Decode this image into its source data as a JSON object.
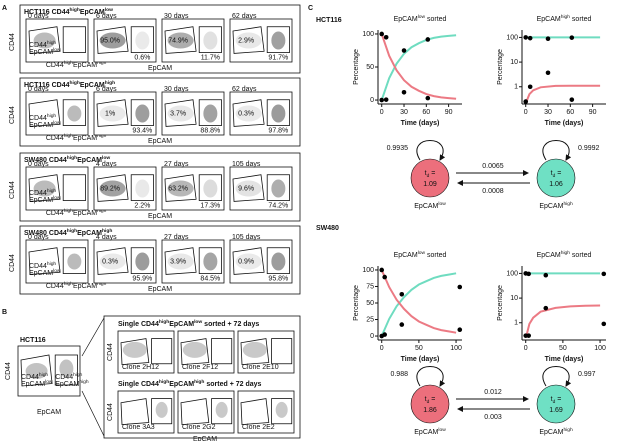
{
  "panel_a": {
    "label": "A",
    "y_axis": "CD44",
    "x_axis": "EpCAM",
    "groups": [
      {
        "title": [
          "HCT116 CD44",
          "high",
          "EpCAM",
          "low"
        ],
        "plots": [
          {
            "day": "0 days",
            "gate_labels": [
              [
                [
                  "CD44",
                  "high"
                ],
                [
                  "EpCAM",
                  "low"
                ]
              ],
              [
                [
                  "CD44",
                  "high",
                  "EpCAM",
                  "high"
                ]
              ]
            ]
          },
          {
            "day": "6 days",
            "percents": [
              "95.0%",
              "0.6%"
            ]
          },
          {
            "day": "30 days",
            "percents": [
              "74.9%",
              "11.7%"
            ]
          },
          {
            "day": "62 days",
            "percents": [
              "2.9%",
              "91.7%"
            ]
          }
        ]
      },
      {
        "title": [
          "HCT116 CD44",
          "high",
          "EpCAM",
          "high"
        ],
        "plots": [
          {
            "day": "0 days",
            "gate_labels": [
              [
                [
                  "CD44",
                  "high"
                ],
                [
                  "EpCAM",
                  "low"
                ]
              ],
              [
                [
                  "CD44",
                  "high",
                  "EpCAM",
                  "high"
                ]
              ]
            ]
          },
          {
            "day": "6 days",
            "percents": [
              "1%",
              "93.4%"
            ]
          },
          {
            "day": "30 days",
            "percents": [
              "3.7%",
              "88.8%"
            ]
          },
          {
            "day": "62 days",
            "percents": [
              "0.3%",
              "97.8%"
            ]
          }
        ]
      },
      {
        "title": [
          "SW480 CD44",
          "high",
          "EpCAM",
          "low"
        ],
        "plots": [
          {
            "day": "0 days",
            "gate_labels": [
              [
                [
                  "CD44",
                  "high"
                ],
                [
                  "EpCAM",
                  "low"
                ]
              ],
              [
                [
                  "CD44",
                  "high",
                  "EpCAM",
                  "high"
                ]
              ]
            ]
          },
          {
            "day": "4 days",
            "percents": [
              "89.2%",
              "2.2%"
            ]
          },
          {
            "day": "27 days",
            "percents": [
              "63.2%",
              "17.3%"
            ]
          },
          {
            "day": "105 days",
            "percents": [
              "9.6%",
              "74.2%"
            ]
          }
        ]
      },
      {
        "title": [
          "SW480 CD44",
          "high",
          "EpCAM",
          "high"
        ],
        "plots": [
          {
            "day": "0 days",
            "gate_labels": [
              [
                [
                  "CD44",
                  "high"
                ],
                [
                  "EpCAM",
                  "low"
                ]
              ],
              [
                [
                  "CD44",
                  "high",
                  "EpCAM",
                  "high"
                ]
              ]
            ]
          },
          {
            "day": "4 days",
            "percents": [
              "0.3%",
              "95.9%"
            ]
          },
          {
            "day": "27 days",
            "percents": [
              "3.9%",
              "84.5%"
            ]
          },
          {
            "day": "105 days",
            "percents": [
              "0.9%",
              "95.8%"
            ]
          }
        ]
      }
    ]
  },
  "panel_b": {
    "label": "B",
    "title": "HCT116",
    "y_axis": "CD44",
    "x_axis": "EpCAM",
    "gate_labels": [
      [
        [
          "CD44",
          "high"
        ],
        [
          "EpCAM",
          "low"
        ]
      ],
      [
        [
          "CD44",
          "high"
        ],
        [
          "EpCAM",
          "high"
        ]
      ]
    ],
    "rows": [
      {
        "title": [
          "Single CD44",
          "high",
          "EpCAM",
          "low",
          " sorted + 72 days"
        ],
        "y_axis": "CD44",
        "clones": [
          "Clone 2H12",
          "Clone 2F12",
          "Clone 2E10"
        ]
      },
      {
        "title": [
          "Single CD44",
          "high",
          "EpCAM",
          "high",
          " sorted + 72 days"
        ],
        "y_axis": "CD44",
        "x_axis": "EpCAM",
        "clones": [
          "Clone 3A3",
          "Clone 2G2",
          "Clone 2E2"
        ]
      }
    ]
  },
  "panel_c": {
    "label": "C",
    "diagrams": [
      {
        "title": "HCT116",
        "states": [
          {
            "label": [
              "EpCAM",
              "low"
            ],
            "t": [
              "t",
              "d",
              " ="
            ],
            "t_value": 1.09,
            "self": 0.9935,
            "color": "#ec6f7c"
          },
          {
            "label": [
              "EpCAM",
              "high"
            ],
            "t": [
              "t",
              "d",
              " ="
            ],
            "t_value": 1.06,
            "self": 0.9992,
            "color": "#6fe0c4"
          }
        ],
        "forward": 0.0065,
        "backward": 0.0008
      },
      {
        "title": "SW480",
        "states": [
          {
            "label": [
              "EpCAM",
              "low"
            ],
            "t": [
              "t",
              "d",
              " ="
            ],
            "t_value": 1.86,
            "self": 0.988,
            "color": "#ec6f7c"
          },
          {
            "label": [
              "EpCAM",
              "high"
            ],
            "t": [
              "t",
              "d",
              " ="
            ],
            "t_value": 1.69,
            "self": 0.997,
            "color": "#6fe0c4"
          }
        ],
        "forward": 0.012,
        "backward": 0.003
      }
    ]
  },
  "chart_data": [
    {
      "type": "line",
      "title": [
        "EpCAM",
        "low",
        " sorted"
      ],
      "x_label": "Time (days)",
      "y_label": "Percentage",
      "x": [
        0,
        10,
        20,
        30,
        40,
        50,
        60,
        70,
        80,
        90,
        100
      ],
      "series": [
        {
          "color": "#6fdcc0",
          "values": [
            0,
            33,
            55,
            70,
            80,
            86,
            91,
            94,
            96,
            97,
            98
          ]
        },
        {
          "color": "#ec7a84",
          "values": [
            100,
            67,
            45,
            30,
            20,
            14,
            9,
            6,
            4,
            3,
            2
          ]
        }
      ],
      "points": {
        "color": "#000000",
        "x": [
          0,
          6,
          30,
          62,
          0,
          6,
          30,
          62
        ],
        "values": [
          100,
          95,
          74.9,
          2.9,
          0,
          0.6,
          11.7,
          91.7
        ]
      },
      "xlim": [
        -5,
        108
      ],
      "ylim": [
        -6,
        106
      ],
      "xticks": [
        0,
        30,
        60,
        90
      ],
      "yticks": [
        0,
        50,
        100
      ]
    },
    {
      "type": "line",
      "title": [
        "EpCAM",
        "high",
        " sorted"
      ],
      "x_label": "Time (days)",
      "y_label": "Percentage",
      "log_y": true,
      "x": [
        1,
        2,
        5,
        10,
        20,
        40,
        60,
        80,
        100
      ],
      "series": [
        {
          "color": "#6fdcc0",
          "values": [
            100,
            100,
            100,
            100,
            100,
            100,
            100,
            100,
            100
          ]
        },
        {
          "color": "#ec7a84",
          "values": [
            0.22,
            0.3,
            0.5,
            0.72,
            0.95,
            1.08,
            1.1,
            1.1,
            1.1
          ]
        }
      ],
      "points": {
        "color": "#000000",
        "x": [
          0,
          6,
          30,
          62,
          0,
          6,
          30,
          62
        ],
        "values": [
          100,
          93.4,
          88.8,
          97.8,
          0.25,
          1,
          3.7,
          0.3
        ]
      },
      "xlim": [
        -5,
        108
      ],
      "ylim": [
        0.2,
        200
      ],
      "xticks": [
        0,
        30,
        60,
        90
      ],
      "yticks": [
        1,
        10,
        100
      ]
    },
    {
      "type": "line",
      "title": [
        "EpCAM",
        "low",
        " sorted"
      ],
      "x_label": "Time (days)",
      "y_label": "Percentage",
      "x": [
        0,
        10,
        20,
        30,
        40,
        50,
        60,
        70,
        80,
        90,
        100
      ],
      "series": [
        {
          "color": "#6fdcc0",
          "values": [
            0,
            26,
            45,
            59,
            70,
            78,
            83,
            88,
            91,
            93,
            95
          ]
        },
        {
          "color": "#ec7a84",
          "values": [
            100,
            74,
            55,
            41,
            30,
            22,
            17,
            12,
            9,
            7,
            5
          ]
        }
      ],
      "points": {
        "color": "#000000",
        "x": [
          0,
          4,
          27,
          105,
          0,
          4,
          27,
          105
        ],
        "values": [
          100,
          89.2,
          63.2,
          9.6,
          0,
          2.2,
          17.3,
          74.2
        ]
      },
      "xlim": [
        -5,
        108
      ],
      "ylim": [
        -6,
        106
      ],
      "xticks": [
        0,
        50,
        100
      ],
      "yticks": [
        0,
        25,
        50,
        75,
        100
      ]
    },
    {
      "type": "line",
      "title": [
        "EpCAM",
        "high",
        " sorted"
      ],
      "x_label": "Time (days)",
      "y_label": "Percentage",
      "log_y": true,
      "x": [
        1,
        2,
        5,
        10,
        20,
        40,
        60,
        80,
        100
      ],
      "series": [
        {
          "color": "#6fdcc0",
          "values": [
            100,
            100,
            100,
            100,
            100,
            100,
            100,
            100,
            100
          ]
        },
        {
          "color": "#ec7a84",
          "values": [
            0.25,
            0.4,
            0.9,
            1.6,
            2.8,
            4,
            4.6,
            4.9,
            5
          ]
        }
      ],
      "points": {
        "color": "#000000",
        "x": [
          0,
          4,
          27,
          105,
          0,
          4,
          27,
          105
        ],
        "values": [
          100,
          95.9,
          84.5,
          95.8,
          0.3,
          0.3,
          3.9,
          0.9
        ]
      },
      "xlim": [
        -5,
        108
      ],
      "ylim": [
        0.2,
        200
      ],
      "xticks": [
        0,
        50,
        100
      ],
      "yticks": [
        1,
        10,
        100
      ]
    }
  ]
}
